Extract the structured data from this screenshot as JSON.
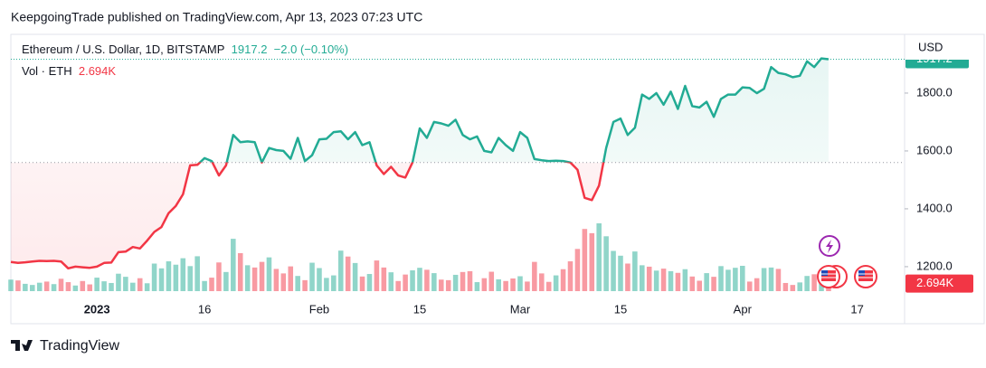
{
  "header": "KeepgoingTrade published on TradingView.com, Apr 13, 2023 07:23 UTC",
  "brand": "TradingView",
  "chart_data": {
    "type": "line",
    "title": "Ethereum / U.S. Dollar, 1D, BITSTAMP",
    "change": "−2.0 (−0.10%)",
    "currency": "USD",
    "baseline": 1560,
    "up_color": "#22ab94",
    "down_color": "#f23645",
    "x": [
      -12,
      -11,
      -10,
      -9,
      -8,
      -7,
      -6,
      -5,
      -4,
      -3,
      -2,
      -1,
      0,
      1,
      2,
      3,
      4,
      5,
      6,
      7,
      8,
      9,
      10,
      11,
      12,
      13,
      14,
      15,
      16,
      17,
      18,
      19,
      20,
      21,
      22,
      23,
      24,
      25,
      26,
      27,
      28,
      29,
      30,
      31,
      32,
      33,
      34,
      35,
      36,
      37,
      38,
      39,
      40,
      41,
      42,
      43,
      44,
      45,
      46,
      47,
      48,
      49,
      50,
      51,
      52,
      53,
      54,
      55,
      56,
      57,
      58,
      59,
      60,
      61,
      62,
      63,
      64,
      65,
      66,
      67,
      68,
      69,
      70,
      71,
      72,
      73,
      74,
      75,
      76,
      77,
      78,
      79,
      80,
      81,
      82,
      83,
      84,
      85,
      86,
      87,
      88,
      89,
      90,
      91,
      92,
      93,
      94,
      95,
      96,
      97,
      98,
      99,
      100,
      101,
      102
    ],
    "values": [
      1216,
      1213,
      1215,
      1218,
      1220,
      1219,
      1220,
      1218,
      1194,
      1200,
      1198,
      1196,
      1200,
      1213,
      1214,
      1250,
      1252,
      1268,
      1263,
      1290,
      1320,
      1337,
      1385,
      1410,
      1450,
      1550,
      1552,
      1575,
      1565,
      1515,
      1550,
      1655,
      1630,
      1633,
      1630,
      1560,
      1610,
      1603,
      1600,
      1573,
      1645,
      1565,
      1585,
      1640,
      1642,
      1665,
      1668,
      1640,
      1665,
      1620,
      1630,
      1550,
      1520,
      1545,
      1515,
      1508,
      1560,
      1678,
      1645,
      1700,
      1695,
      1687,
      1708,
      1655,
      1640,
      1650,
      1600,
      1595,
      1645,
      1620,
      1600,
      1665,
      1645,
      1572,
      1568,
      1565,
      1566,
      1565,
      1560,
      1535,
      1438,
      1430,
      1480,
      1610,
      1700,
      1712,
      1655,
      1680,
      1795,
      1780,
      1800,
      1760,
      1805,
      1745,
      1825,
      1755,
      1750,
      1770,
      1718,
      1780,
      1795,
      1795,
      1820,
      1818,
      1800,
      1815,
      1890,
      1870,
      1865,
      1855,
      1860,
      1910,
      1890,
      1920,
      1917.2
    ],
    "xlim": [
      -12,
      112.6
    ],
    "xticks": [
      {
        "value": 0,
        "label": "2023"
      },
      {
        "value": 15,
        "label": "16"
      },
      {
        "value": 31,
        "label": "Feb"
      },
      {
        "value": 45,
        "label": "15"
      },
      {
        "value": 59,
        "label": "Mar"
      },
      {
        "value": 73,
        "label": "15"
      },
      {
        "value": 90,
        "label": "Apr"
      },
      {
        "value": 106,
        "label": "17"
      }
    ],
    "ylim": [
      1006,
      2003
    ],
    "yticks": [
      {
        "value": 1200,
        "label": "1200.0"
      },
      {
        "value": 1400,
        "label": "1400.0"
      },
      {
        "value": 1600,
        "label": "1600.0"
      },
      {
        "value": 1800,
        "label": "1800.0"
      }
    ],
    "volume": {
      "label": "Vol · ETH",
      "current_label": "2.694K",
      "values": [
        4.1,
        3.8,
        2.6,
        2.2,
        3.0,
        3.4,
        2.5,
        4.4,
        3.2,
        2.0,
        3.6,
        2.4,
        4.8,
        3.5,
        2.9,
        6.2,
        5.1,
        3.0,
        4.6,
        2.8,
        9.8,
        8.1,
        10.6,
        9.4,
        11.7,
        8.9,
        12.4,
        3.6,
        4.8,
        10.2,
        6.8,
        18.6,
        13.5,
        9.2,
        8.4,
        10.4,
        12.0,
        7.9,
        6.3,
        8.8,
        5.4,
        3.9,
        10.1,
        8.2,
        4.7,
        5.6,
        14.4,
        12.3,
        10.0,
        5.2,
        6.1,
        10.9,
        8.4,
        6.7,
        3.6,
        5.9,
        7.4,
        8.3,
        7.6,
        6.4,
        4.1,
        3.9,
        5.8,
        6.8,
        7.1,
        3.2,
        4.6,
        6.9,
        4.2,
        3.6,
        4.5,
        5.3,
        3.4,
        10.4,
        6.3,
        3.3,
        5.6,
        7.8,
        10.6,
        15.0,
        22.1,
        20.6,
        24.1,
        19.5,
        14.3,
        12.6,
        9.8,
        14.1,
        9.2,
        8.7,
        7.3,
        8.0,
        7.1,
        6.5,
        7.8,
        5.2,
        3.7,
        6.4,
        5.1,
        8.9,
        7.6,
        8.3,
        9.0,
        3.4,
        4.6,
        8.2,
        8.4,
        7.9,
        2.9,
        2.2,
        3.1,
        5.4,
        6.0,
        3.9,
        2.694
      ]
    }
  }
}
